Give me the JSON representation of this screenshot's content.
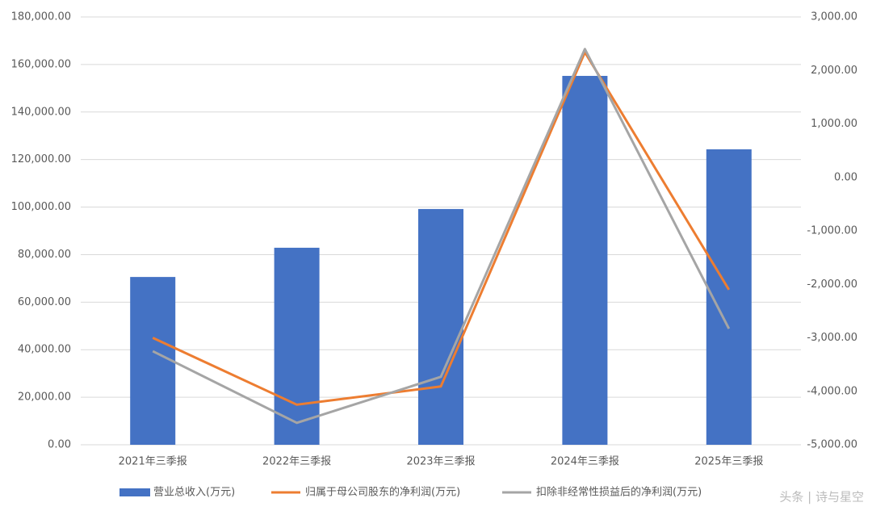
{
  "chart_data": {
    "type": "combo",
    "categories": [
      "2021年三季报",
      "2022年三季报",
      "2023年三季报",
      "2024年三季报",
      "2025年三季报"
    ],
    "series": [
      {
        "name": "营业总收入(万元)",
        "type": "bar",
        "color": "#4472c4",
        "values": [
          70600,
          82900,
          99200,
          155200,
          124300
        ]
      },
      {
        "name": "归属于母公司股东的净利润(万元)",
        "type": "line",
        "axis": "y2",
        "color": "#ed7d31",
        "values": [
          -3000,
          -4250,
          -3910,
          2340,
          -2100
        ]
      },
      {
        "name": "扣除非经常性损益后的净利润(万元)",
        "type": "line",
        "axis": "y2",
        "color": "#a5a5a5",
        "values": [
          -3250,
          -4590,
          -3730,
          2400,
          -2830
        ]
      }
    ],
    "ylim": [
      0,
      180000
    ],
    "yticks": [
      {
        "value": 0,
        "label": "0.00"
      },
      {
        "value": 20000,
        "label": "20,000.00"
      },
      {
        "value": 40000,
        "label": "40,000.00"
      },
      {
        "value": 60000,
        "label": "60,000.00"
      },
      {
        "value": 80000,
        "label": "80,000.00"
      },
      {
        "value": 100000,
        "label": "100,000.00"
      },
      {
        "value": 120000,
        "label": "120,000.00"
      },
      {
        "value": 140000,
        "label": "140,000.00"
      },
      {
        "value": 160000,
        "label": "160,000.00"
      },
      {
        "value": 180000,
        "label": "180,000.00"
      }
    ],
    "y2lim": [
      -5000,
      3000
    ],
    "y2ticks": [
      {
        "value": -5000,
        "label": "-5,000.00"
      },
      {
        "value": -4000,
        "label": "-4,000.00"
      },
      {
        "value": -3000,
        "label": "-3,000.00"
      },
      {
        "value": -2000,
        "label": "-2,000.00"
      },
      {
        "value": -1000,
        "label": "-1,000.00"
      },
      {
        "value": 0,
        "label": "0.00"
      },
      {
        "value": 1000,
        "label": "1,000.00"
      },
      {
        "value": 2000,
        "label": "2,000.00"
      },
      {
        "value": 3000,
        "label": "3,000.00"
      }
    ],
    "grid": true,
    "legend": "bottom",
    "watermark": "头条 | 诗与星空"
  }
}
